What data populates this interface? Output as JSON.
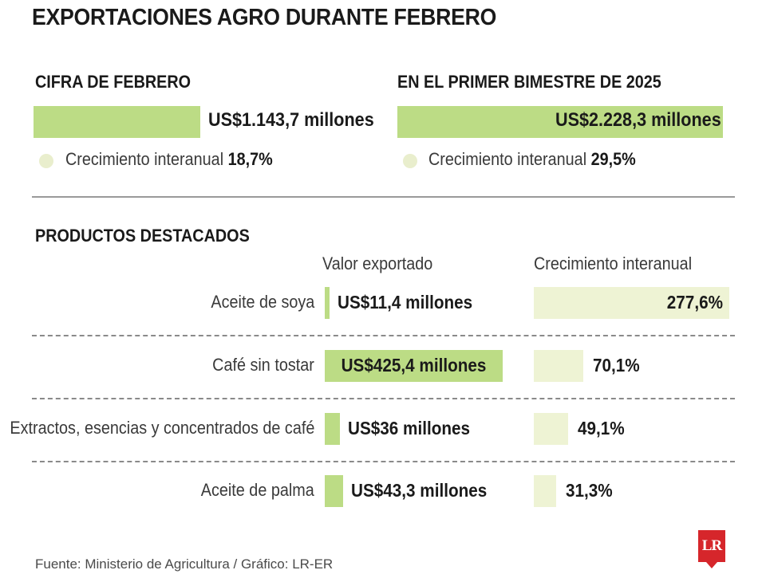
{
  "title": "EXPORTACIONES AGRO DURANTE FEBRERO",
  "summary": {
    "february": {
      "heading": "CIFRA DE FEBRERO",
      "value_label": "US$1.143,7 millones",
      "value": 1143.7,
      "growth_text": "Crecimiento interanual",
      "growth_value": "18,7%"
    },
    "bimester": {
      "heading": "EN EL PRIMER BIMESTRE DE 2025",
      "value_label": "US$2.228,3 millones",
      "value": 2228.3,
      "growth_text": "Crecimiento interanual",
      "growth_value": "29,5%"
    }
  },
  "products": {
    "heading": "PRODUCTOS DESTACADOS",
    "col_value": "Valor exportado",
    "col_growth": "Crecimiento interanual"
  },
  "chart_data": {
    "type": "bar",
    "categories": [
      "Aceite de soya",
      "Café sin tostar",
      "Extractos, esencias y concentrados de café",
      "Aceite de palma"
    ],
    "series": [
      {
        "name": "Valor exportado",
        "unit": "US$ millones",
        "values": [
          11.4,
          425.4,
          36,
          43.3
        ],
        "labels": [
          "US$11,4 millones",
          "US$425,4 millones",
          "US$36 millones",
          "US$43,3 millones"
        ],
        "color": "#bcdc85"
      },
      {
        "name": "Crecimiento interanual",
        "unit": "%",
        "values": [
          277.6,
          70.1,
          49.1,
          31.3
        ],
        "labels": [
          "277,6%",
          "70,1%",
          "49,1%",
          "31,3%"
        ],
        "color": "#eef3d4"
      }
    ],
    "title": "PRODUCTOS DESTACADOS"
  },
  "source": "Fuente: Ministerio de Agricultura / Gráfico: LR-ER",
  "logo_text": "LR",
  "colors": {
    "bar_value": "#bcdc85",
    "bar_growth": "#eef3d4",
    "dot": "#e9eecd",
    "logo": "#d6262b"
  }
}
